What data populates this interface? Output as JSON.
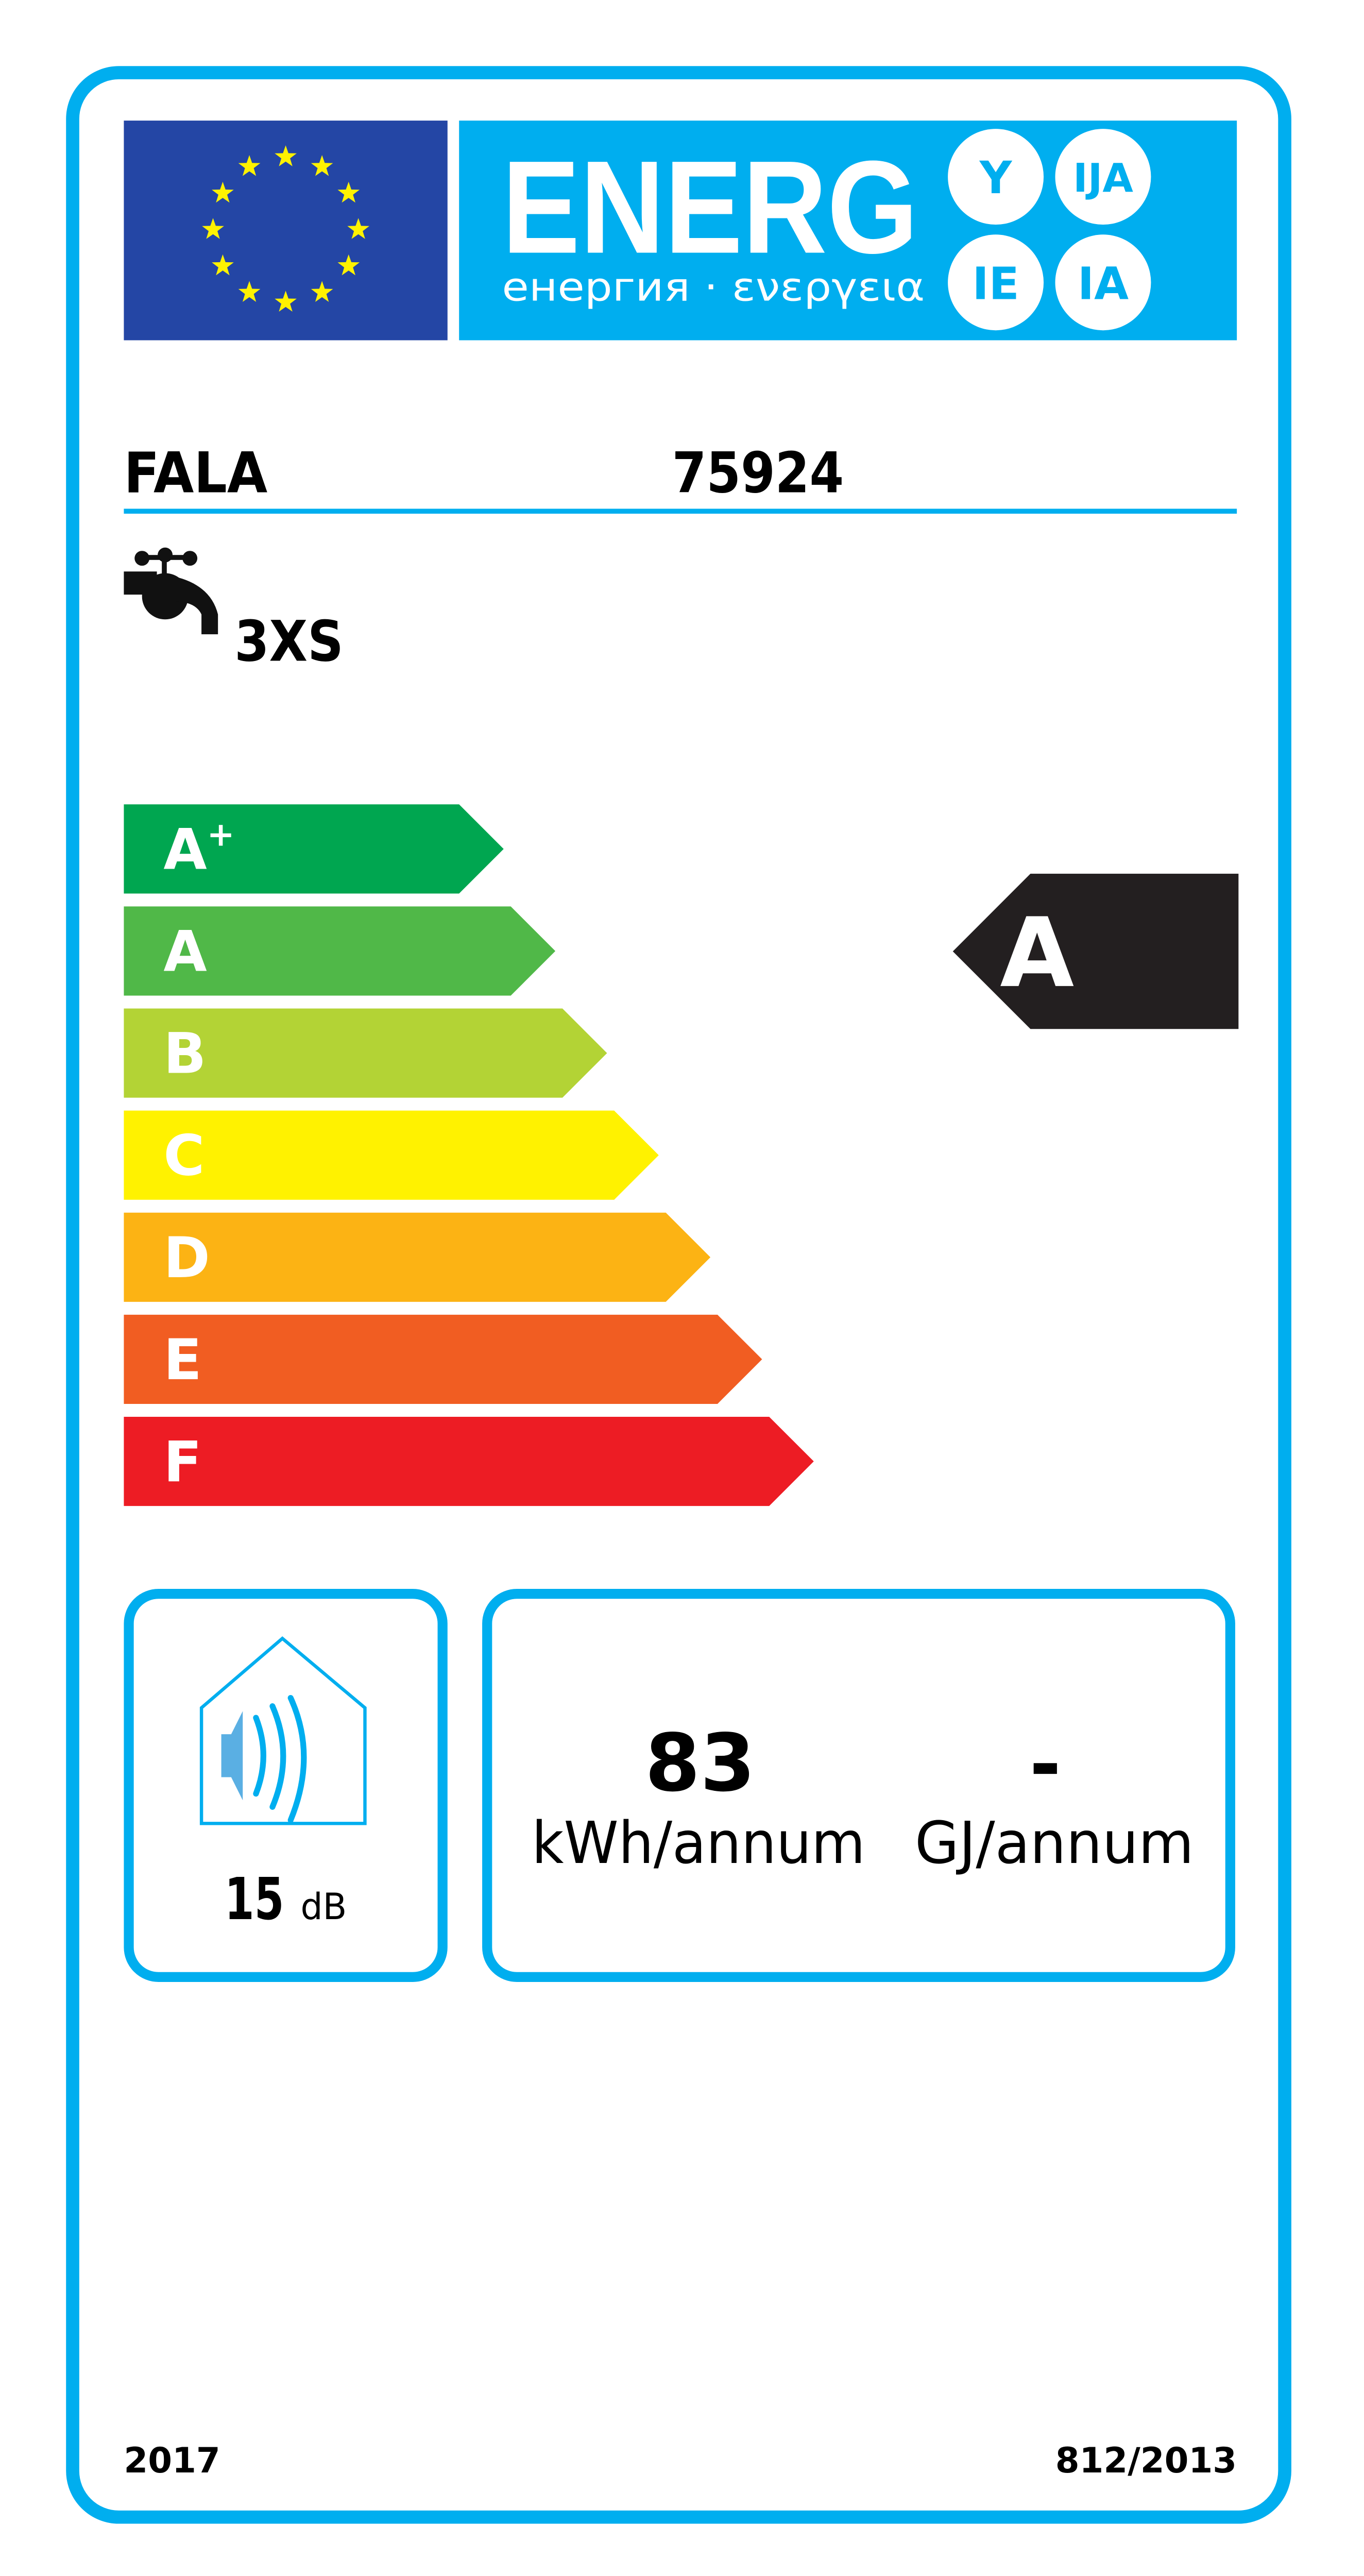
{
  "header": {
    "energy_word": "ENERG",
    "subtitle": "енергия · ενεργεια",
    "suffixes": [
      "Y",
      "IJA",
      "IE",
      "IA"
    ],
    "flag_color": "#2446A5",
    "banner_color": "#00AEEF"
  },
  "supplier": "FALA",
  "model": "75924",
  "load_profile": {
    "icon": "tap-icon",
    "value": "3XS"
  },
  "scale": {
    "classes": [
      {
        "label": "A",
        "sup": "+",
        "color": "#00A650"
      },
      {
        "label": "A",
        "sup": "",
        "color": "#50B848"
      },
      {
        "label": "B",
        "sup": "",
        "color": "#B3D335"
      },
      {
        "label": "C",
        "sup": "",
        "color": "#FFF200"
      },
      {
        "label": "D",
        "sup": "",
        "color": "#FCB314"
      },
      {
        "label": "E",
        "sup": "",
        "color": "#F15D22"
      },
      {
        "label": "F",
        "sup": "",
        "color": "#ED1C24"
      }
    ],
    "rating": "A",
    "rating_color": "#231F20"
  },
  "noise": {
    "icon": "speaker-house-icon",
    "value": "15",
    "unit": "dB"
  },
  "consumption": {
    "electricity_value": "83",
    "electricity_unit": "kWh/annum",
    "fuel_value": "-",
    "fuel_unit": "GJ/annum"
  },
  "footer": {
    "year": "2017",
    "regulation": "812/2013"
  }
}
